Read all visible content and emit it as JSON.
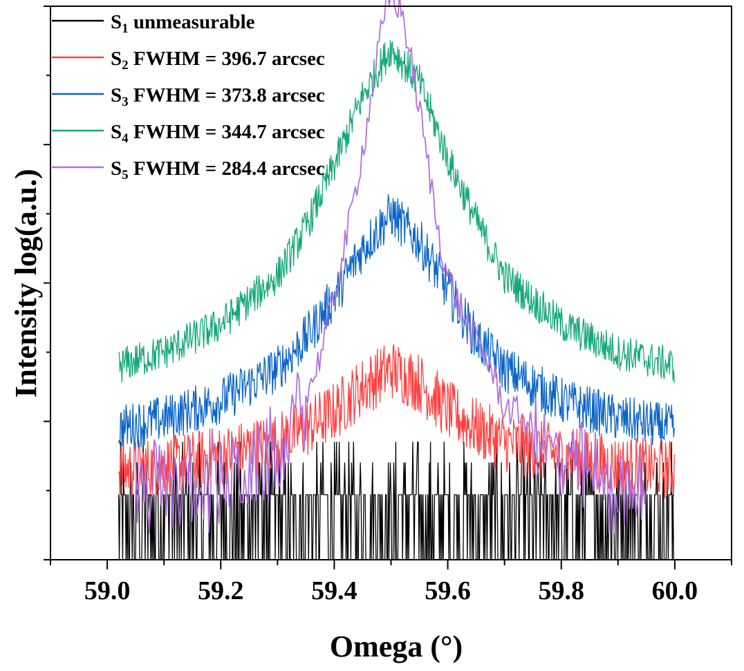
{
  "chart_data": {
    "type": "line",
    "title": "",
    "xlabel": "Omega (°)",
    "ylabel": "Intensity log(a.u.)",
    "xlim": [
      58.9,
      60.1
    ],
    "ylim": [
      0,
      4
    ],
    "y_scale": "log",
    "y_tick_labels_shown": false,
    "x_ticks": [
      "59.0",
      "59.2",
      "59.4",
      "59.6",
      "59.8",
      "60.0"
    ],
    "x_minor_ticks": true,
    "legend_position": "top-left",
    "grid": false,
    "series": [
      {
        "symbol": "S",
        "sub": "1",
        "name_rest": " unmeasurable",
        "color": "#000000",
        "x": [
          59.02,
          59.5,
          60.0
        ],
        "y": [
          0.25,
          0.25,
          0.25
        ]
      },
      {
        "symbol": "S",
        "sub": "2",
        "name_rest": " FWHM = 396.7 arcsec",
        "color": "#ff4040",
        "x": [
          59.02,
          59.1,
          59.2,
          59.3,
          59.35,
          59.4,
          59.45,
          59.5,
          59.55,
          59.6,
          59.65,
          59.7,
          59.8,
          59.9,
          60.0
        ],
        "y": [
          0.65,
          0.68,
          0.75,
          0.85,
          0.95,
          1.07,
          1.25,
          1.38,
          1.28,
          1.08,
          0.95,
          0.85,
          0.75,
          0.68,
          0.65
        ]
      },
      {
        "symbol": "S",
        "sub": "3",
        "name_rest": " FWHM = 373.8 arcsec",
        "color": "#0a64c8",
        "x": [
          59.02,
          59.1,
          59.2,
          59.3,
          59.35,
          59.4,
          59.45,
          59.5,
          59.55,
          59.6,
          59.65,
          59.7,
          59.8,
          59.9,
          60.0
        ],
        "y": [
          0.95,
          1.02,
          1.15,
          1.38,
          1.6,
          1.9,
          2.25,
          2.5,
          2.3,
          1.95,
          1.6,
          1.38,
          1.15,
          1.02,
          0.95
        ]
      },
      {
        "symbol": "S",
        "sub": "4",
        "name_rest": " FWHM = 344.7 arcsec",
        "color": "#14a878",
        "x": [
          59.02,
          59.1,
          59.2,
          59.3,
          59.35,
          59.4,
          59.45,
          59.5,
          59.55,
          59.6,
          59.65,
          59.7,
          59.8,
          59.9,
          60.0
        ],
        "y": [
          1.4,
          1.5,
          1.7,
          2.05,
          2.4,
          2.85,
          3.35,
          3.7,
          3.45,
          2.9,
          2.45,
          2.05,
          1.7,
          1.5,
          1.4
        ]
      },
      {
        "symbol": "S",
        "sub": "5",
        "name_rest": " FWHM = 284.4 arcsec",
        "color": "#b070e0",
        "x": [
          59.05,
          59.15,
          59.25,
          59.32,
          59.37,
          59.4,
          59.43,
          59.46,
          59.48,
          59.5,
          59.52,
          59.54,
          59.56,
          59.58,
          59.6,
          59.64,
          59.67,
          59.7,
          59.73,
          59.78,
          59.88,
          59.95
        ],
        "y": [
          0.5,
          0.55,
          0.6,
          0.85,
          1.4,
          1.9,
          2.5,
          3.2,
          3.75,
          4.1,
          3.95,
          3.5,
          3.0,
          2.45,
          2.05,
          1.65,
          1.45,
          1.1,
          1.05,
          0.75,
          0.55,
          0.45
        ]
      }
    ]
  }
}
